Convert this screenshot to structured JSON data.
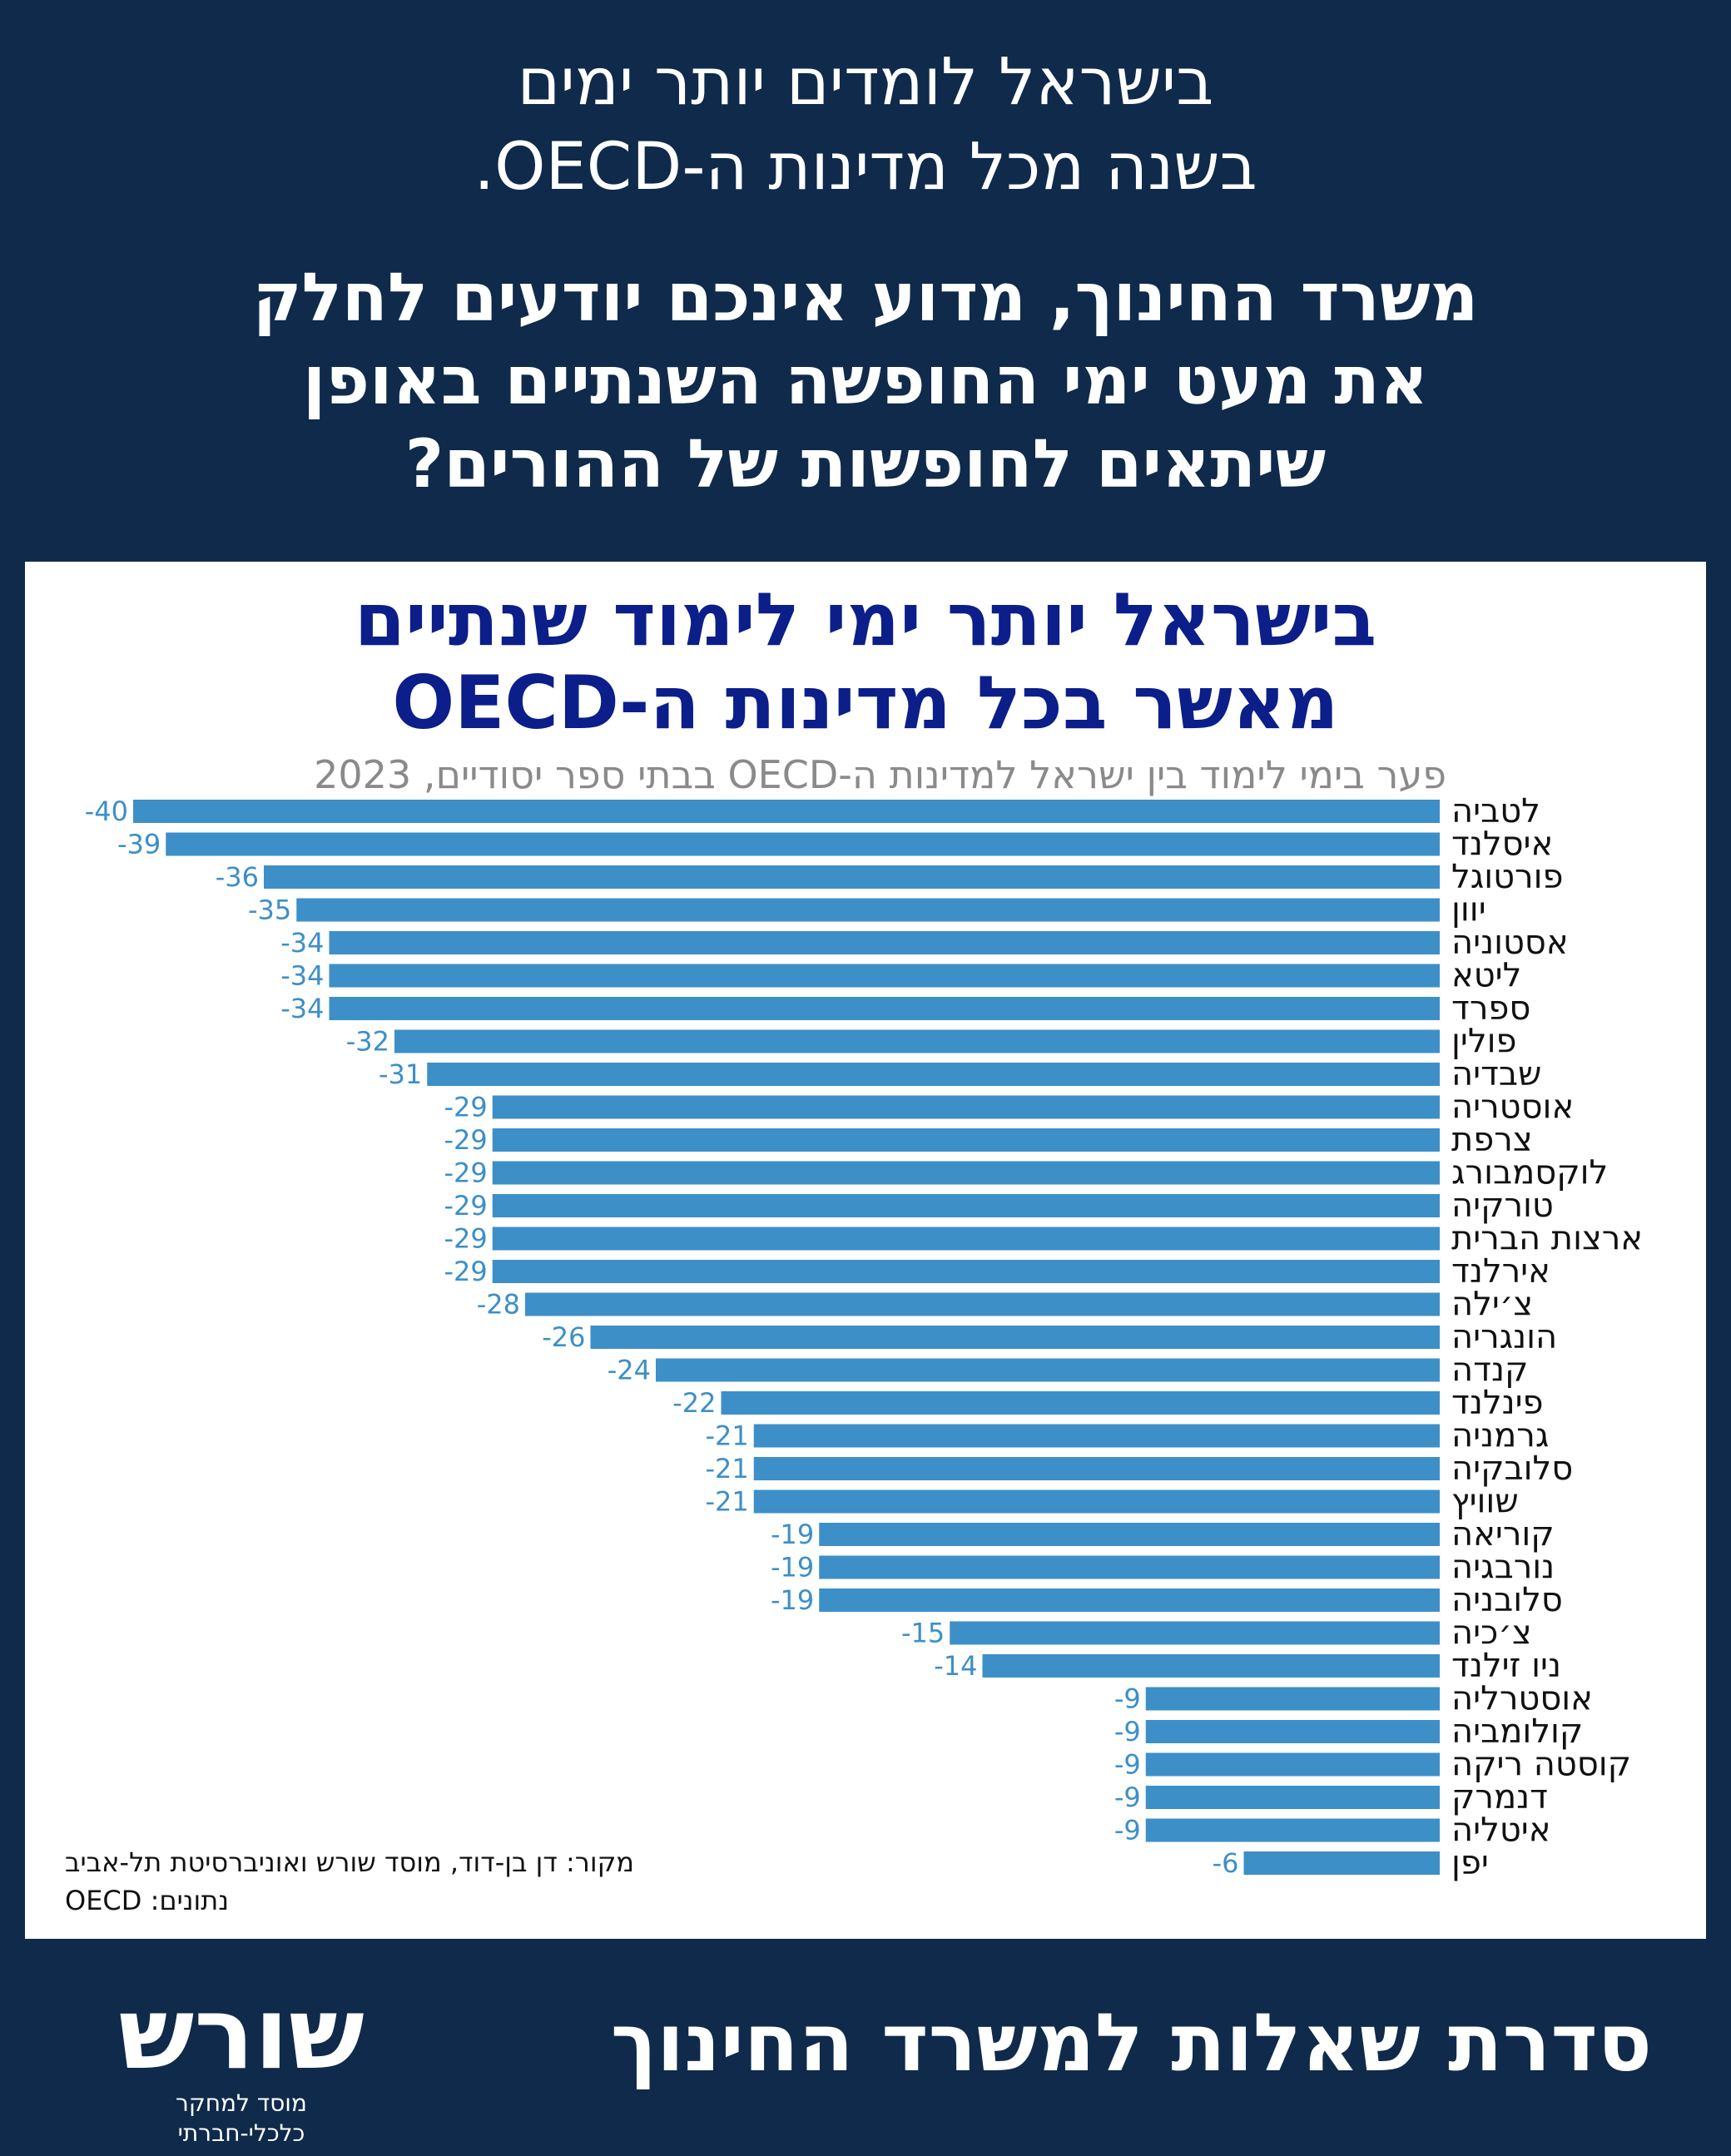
{
  "header": {
    "line1": "בישראל לומדים יותר ימים",
    "line2": "בשנה מכל מדינות ה-OECD.",
    "question_line1": "משרד החינוך, מדוע אינכם יודעים לחלק",
    "question_line2": "את מעט ימי החופשה השנתיים באופן",
    "question_line3": "שיתאים לחופשות של ההורים?"
  },
  "chart": {
    "title_line1": "בישראל יותר ימי לימוד שנתיים",
    "title_line2": "מאשר בכל מדינות ה-OECD",
    "subtitle": "פער בימי לימוד בין ישראל למדינות ה-OECD בבתי ספר יסודיים, 2023",
    "source_line1": "מקור: דן בן-דוד, מוסד שורש ואוניברסיטת תל-אביב",
    "source_line2": "נתונים: OECD"
  },
  "chart_data": {
    "type": "bar",
    "orientation": "horizontal",
    "title": "בישראל יותר ימי לימוד שנתיים מאשר בכל מדינות ה-OECD",
    "subtitle": "פער בימי לימוד בין ישראל למדינות ה-OECD בבתי ספר יסודיים, 2023",
    "categories": [
      "לטביה",
      "איסלנד",
      "פורטוגל",
      "יוון",
      "אסטוניה",
      "ליטא",
      "ספרד",
      "פולין",
      "שבדיה",
      "אוסטריה",
      "צרפת",
      "לוקסמבורג",
      "טורקיה",
      "ארצות הברית",
      "אירלנד",
      "צ׳ילה",
      "הונגריה",
      "קנדה",
      "פינלנד",
      "גרמניה",
      "סלובקיה",
      "שוויץ",
      "קוריאה",
      "נורבגיה",
      "סלובניה",
      "צ׳כיה",
      "ניו זילנד",
      "אוסטרליה",
      "קולומביה",
      "קוסטה ריקה",
      "דנמרק",
      "איטליה",
      "יפן"
    ],
    "values": [
      -40,
      -39,
      -36,
      -35,
      -34,
      -34,
      -34,
      -32,
      -31,
      -29,
      -29,
      -29,
      -29,
      -29,
      -29,
      -28,
      -26,
      -24,
      -22,
      -21,
      -21,
      -21,
      -19,
      -19,
      -19,
      -15,
      -14,
      -9,
      -9,
      -9,
      -9,
      -9,
      -6
    ],
    "xlim": [
      -40,
      0
    ],
    "grid": false,
    "legend": "none",
    "bar_color": "#3d8fc8",
    "label_color": "#3d8fc8"
  },
  "footer": {
    "series_title": "סדרת שאלות למשרד החינוך",
    "logo_word": "שורש",
    "logo_tagline": "מוסד למחקר כלכלי-חברתי"
  },
  "colors": {
    "background": "#0f2a4a",
    "panel": "#ffffff",
    "title": "#0b1e8a",
    "bar": "#3d8fc8"
  }
}
